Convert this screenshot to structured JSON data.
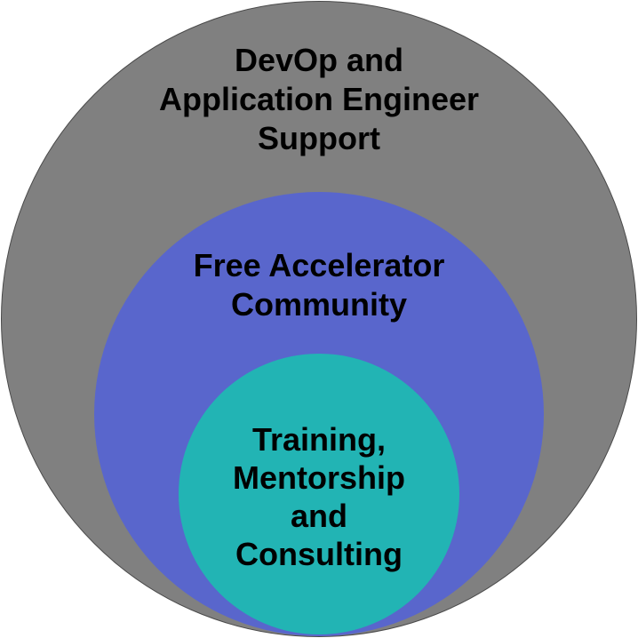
{
  "colors": {
    "outer": "#808080",
    "middle": "#5966cc",
    "inner": "#22b4b4"
  },
  "rings": {
    "outer": {
      "lines": [
        "DevOp and",
        "Application Engineer",
        "Support"
      ]
    },
    "middle": {
      "lines": [
        "Free Accelerator",
        "Community"
      ]
    },
    "inner": {
      "lines": [
        "Training,",
        "Mentorship",
        "and",
        "Consulting"
      ]
    }
  }
}
